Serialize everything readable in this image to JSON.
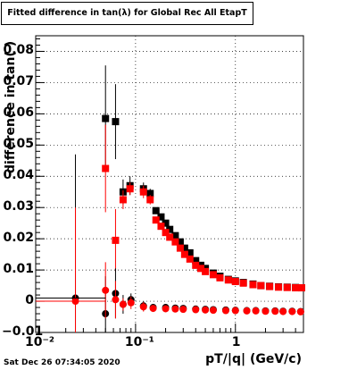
{
  "title": "Fitted difference in tan(λ) for Global Rec All EtapT",
  "timestamp": "Sat Dec 26 07:34:05 2020",
  "chart_data": {
    "type": "scatter",
    "title": "Fitted difference in tan(λ) for Global Rec All EtapT",
    "xlabel": "pT/|q| (GeV/c)",
    "ylabel": "difference in tan( )",
    "x_scale": "log",
    "xlim": [
      0.01,
      4.8
    ],
    "ylim": [
      -0.01,
      0.085
    ],
    "x_tick_labels": [
      "10⁻²",
      "10⁻¹",
      "1"
    ],
    "y_tick_labels": [
      "−0.01",
      "0",
      "0.01",
      "0.02",
      "0.03",
      "0.04",
      "0.05",
      "0.06",
      "0.07",
      "0.08"
    ],
    "y_ticks": [
      -0.01,
      0,
      0.01,
      0.02,
      0.03,
      0.04,
      0.05,
      0.06,
      0.07,
      0.08
    ],
    "grid": true,
    "legend": "none",
    "series": [
      {
        "color": "#000000",
        "marker": "square",
        "points": [
          [
            0.05,
            0.0585,
            0.017
          ],
          [
            0.063,
            0.0575,
            0.012
          ],
          [
            0.075,
            0.035,
            0.004
          ],
          [
            0.088,
            0.037,
            0.003
          ],
          [
            0.12,
            0.036,
            0.002
          ],
          [
            0.14,
            0.0345,
            0.0015
          ],
          [
            0.16,
            0.029,
            0.001
          ],
          [
            0.18,
            0.027,
            0.001
          ],
          [
            0.2,
            0.025,
            0.001
          ],
          [
            0.22,
            0.023,
            0.001
          ],
          [
            0.25,
            0.021,
            0.001
          ],
          [
            0.28,
            0.019,
            0.001
          ],
          [
            0.31,
            0.017,
            0.001
          ],
          [
            0.35,
            0.0155,
            0.001
          ],
          [
            0.4,
            0.013,
            0.001
          ],
          [
            0.45,
            0.0115,
            0.001
          ],
          [
            0.5,
            0.0105,
            0.001
          ],
          [
            0.6,
            0.009,
            0.001
          ],
          [
            0.7,
            0.008,
            0.001
          ],
          [
            0.85,
            0.007,
            0.001
          ],
          [
            1.0,
            0.0065,
            0.001
          ],
          [
            1.2,
            0.006,
            0.001
          ],
          [
            1.5,
            0.0055,
            0.001
          ],
          [
            1.8,
            0.005,
            0.001
          ],
          [
            2.2,
            0.0048,
            0.001
          ],
          [
            2.7,
            0.0046,
            0.001
          ],
          [
            3.3,
            0.0045,
            0.001
          ],
          [
            4.0,
            0.0044,
            0.001
          ],
          [
            4.6,
            0.0043,
            0.001
          ]
        ]
      },
      {
        "color": "#ff0000",
        "marker": "square",
        "points": [
          [
            0.05,
            0.0425,
            0.014
          ],
          [
            0.063,
            0.0195,
            0.01
          ],
          [
            0.075,
            0.0325,
            0.003
          ],
          [
            0.088,
            0.036,
            0.002
          ],
          [
            0.12,
            0.035,
            0.002
          ],
          [
            0.14,
            0.0325,
            0.0015
          ],
          [
            0.16,
            0.026,
            0.001
          ],
          [
            0.18,
            0.024,
            0.001
          ],
          [
            0.2,
            0.022,
            0.001
          ],
          [
            0.22,
            0.0205,
            0.001
          ],
          [
            0.25,
            0.019,
            0.001
          ],
          [
            0.28,
            0.017,
            0.001
          ],
          [
            0.31,
            0.015,
            0.001
          ],
          [
            0.35,
            0.0135,
            0.001
          ],
          [
            0.4,
            0.0115,
            0.001
          ],
          [
            0.45,
            0.0105,
            0.001
          ],
          [
            0.5,
            0.0095,
            0.001
          ],
          [
            0.6,
            0.0085,
            0.001
          ],
          [
            0.7,
            0.0075,
            0.001
          ],
          [
            0.85,
            0.0068,
            0.001
          ],
          [
            1.0,
            0.0063,
            0.001
          ],
          [
            1.2,
            0.0058,
            0.001
          ],
          [
            1.5,
            0.0053,
            0.001
          ],
          [
            1.8,
            0.005,
            0.001
          ],
          [
            2.2,
            0.0047,
            0.001
          ],
          [
            2.7,
            0.0045,
            0.001
          ],
          [
            3.3,
            0.0044,
            0.001
          ],
          [
            4.0,
            0.0043,
            0.001
          ],
          [
            4.6,
            0.0043,
            0.001
          ]
        ]
      },
      {
        "color": "#000000",
        "marker": "circle",
        "points": [
          [
            0.025,
            0.001,
            0.046
          ],
          [
            0.05,
            -0.004,
            0.012
          ],
          [
            0.063,
            0.0025,
            0.008
          ],
          [
            0.075,
            -0.001,
            0.003
          ],
          [
            0.09,
            0.0005,
            0.002
          ],
          [
            0.12,
            -0.0015,
            0.0015
          ],
          [
            0.15,
            -0.002,
            0.001
          ],
          [
            0.2,
            -0.002,
            0.001
          ],
          [
            0.25,
            -0.0022,
            0.001
          ],
          [
            0.3,
            -0.0023,
            0.001
          ],
          [
            0.4,
            -0.0025,
            0.001
          ],
          [
            0.5,
            -0.0026,
            0.001
          ],
          [
            0.6,
            -0.0027,
            0.001
          ],
          [
            0.8,
            -0.0028,
            0.001
          ],
          [
            1.0,
            -0.0029,
            0.001
          ],
          [
            1.3,
            -0.003,
            0.001
          ],
          [
            1.6,
            -0.003,
            0.001
          ],
          [
            2.0,
            -0.0031,
            0.001
          ],
          [
            2.5,
            -0.0031,
            0.001
          ],
          [
            3.0,
            -0.0032,
            0.001
          ],
          [
            3.7,
            -0.0032,
            0.001
          ],
          [
            4.5,
            -0.0033,
            0.001
          ]
        ]
      },
      {
        "color": "#ff0000",
        "marker": "circle",
        "points": [
          [
            0.025,
            0.0,
            0.03
          ],
          [
            0.05,
            0.0035,
            0.009
          ],
          [
            0.063,
            0.0005,
            0.006
          ],
          [
            0.075,
            -0.001,
            0.002
          ],
          [
            0.09,
            -0.0005,
            0.002
          ],
          [
            0.12,
            -0.0018,
            0.0015
          ],
          [
            0.15,
            -0.0023,
            0.001
          ],
          [
            0.2,
            -0.0024,
            0.001
          ],
          [
            0.25,
            -0.0025,
            0.001
          ],
          [
            0.3,
            -0.0026,
            0.001
          ],
          [
            0.4,
            -0.0027,
            0.001
          ],
          [
            0.5,
            -0.0028,
            0.001
          ],
          [
            0.6,
            -0.0029,
            0.001
          ],
          [
            0.8,
            -0.003,
            0.001
          ],
          [
            1.0,
            -0.003,
            0.001
          ],
          [
            1.3,
            -0.0031,
            0.001
          ],
          [
            1.6,
            -0.0031,
            0.001
          ],
          [
            2.0,
            -0.0032,
            0.001
          ],
          [
            2.5,
            -0.0032,
            0.001
          ],
          [
            3.0,
            -0.0033,
            0.001
          ],
          [
            3.7,
            -0.0033,
            0.001
          ],
          [
            4.5,
            -0.0034,
            0.001
          ]
        ]
      }
    ]
  }
}
